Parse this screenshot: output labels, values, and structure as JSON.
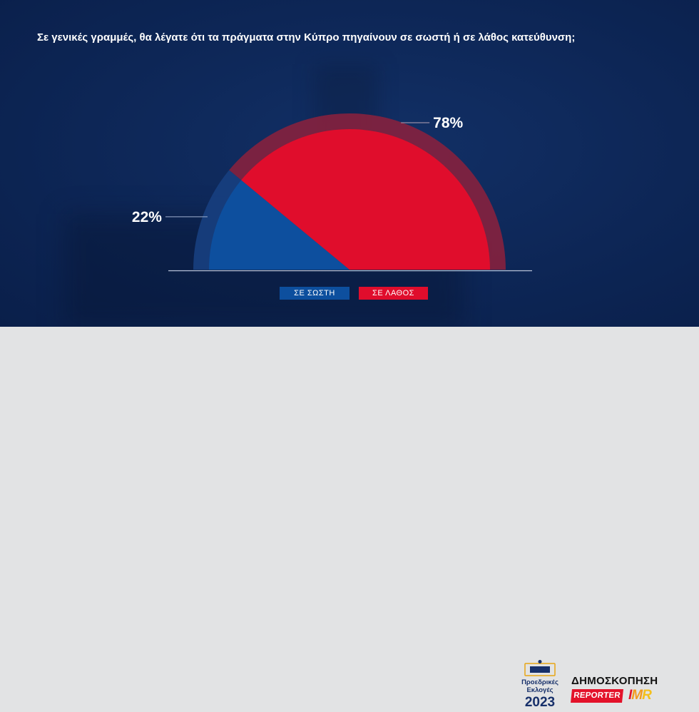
{
  "question": "Σε γενικές γραμμές, θα λέγατε ότι τα πράγματα στην Κύπρο πηγαίνουν σε σωστή ή σε λάθος κατεύθυνση;",
  "chart_data": {
    "type": "pie",
    "variant": "semi-donut",
    "title": "Σε γενικές γραμμές, θα λέγατε ότι τα πράγματα στην Κύπρο πηγαίνουν σε σωστή ή σε λάθος κατεύθυνση;",
    "categories": [
      "ΣΕ ΣΩΣΤΗ",
      "ΣΕ ΛΑΘΟΣ"
    ],
    "values": [
      22,
      78
    ],
    "labels": [
      "22%",
      "78%"
    ],
    "colors": [
      "#0d4f9e",
      "#e00d2c"
    ],
    "legend_position": "bottom"
  },
  "legend": {
    "right_direction": "ΣΕ ΣΩΣΤΗ",
    "wrong_direction": "ΣΕ ΛΑΘΟΣ"
  },
  "footer": {
    "election_logo": {
      "line1": "Προεδρικές",
      "line2": "Εκλογές",
      "year": "2023"
    },
    "poll_label": "ΔΗΜΟΣΚΟΠΗΣΗ",
    "reporter_logo": "REPORTER",
    "imr_logo": {
      "i": "I",
      "m": "M",
      "r": "R"
    }
  },
  "colors": {
    "background_navy": "#0d2656",
    "footer_gray": "#e2e3e4",
    "right_blue": "#0d4f9e",
    "wrong_red": "#e00d2c",
    "right_ring": "#173f80",
    "wrong_ring": "#86213e",
    "baseline": "#b8c2d8"
  }
}
